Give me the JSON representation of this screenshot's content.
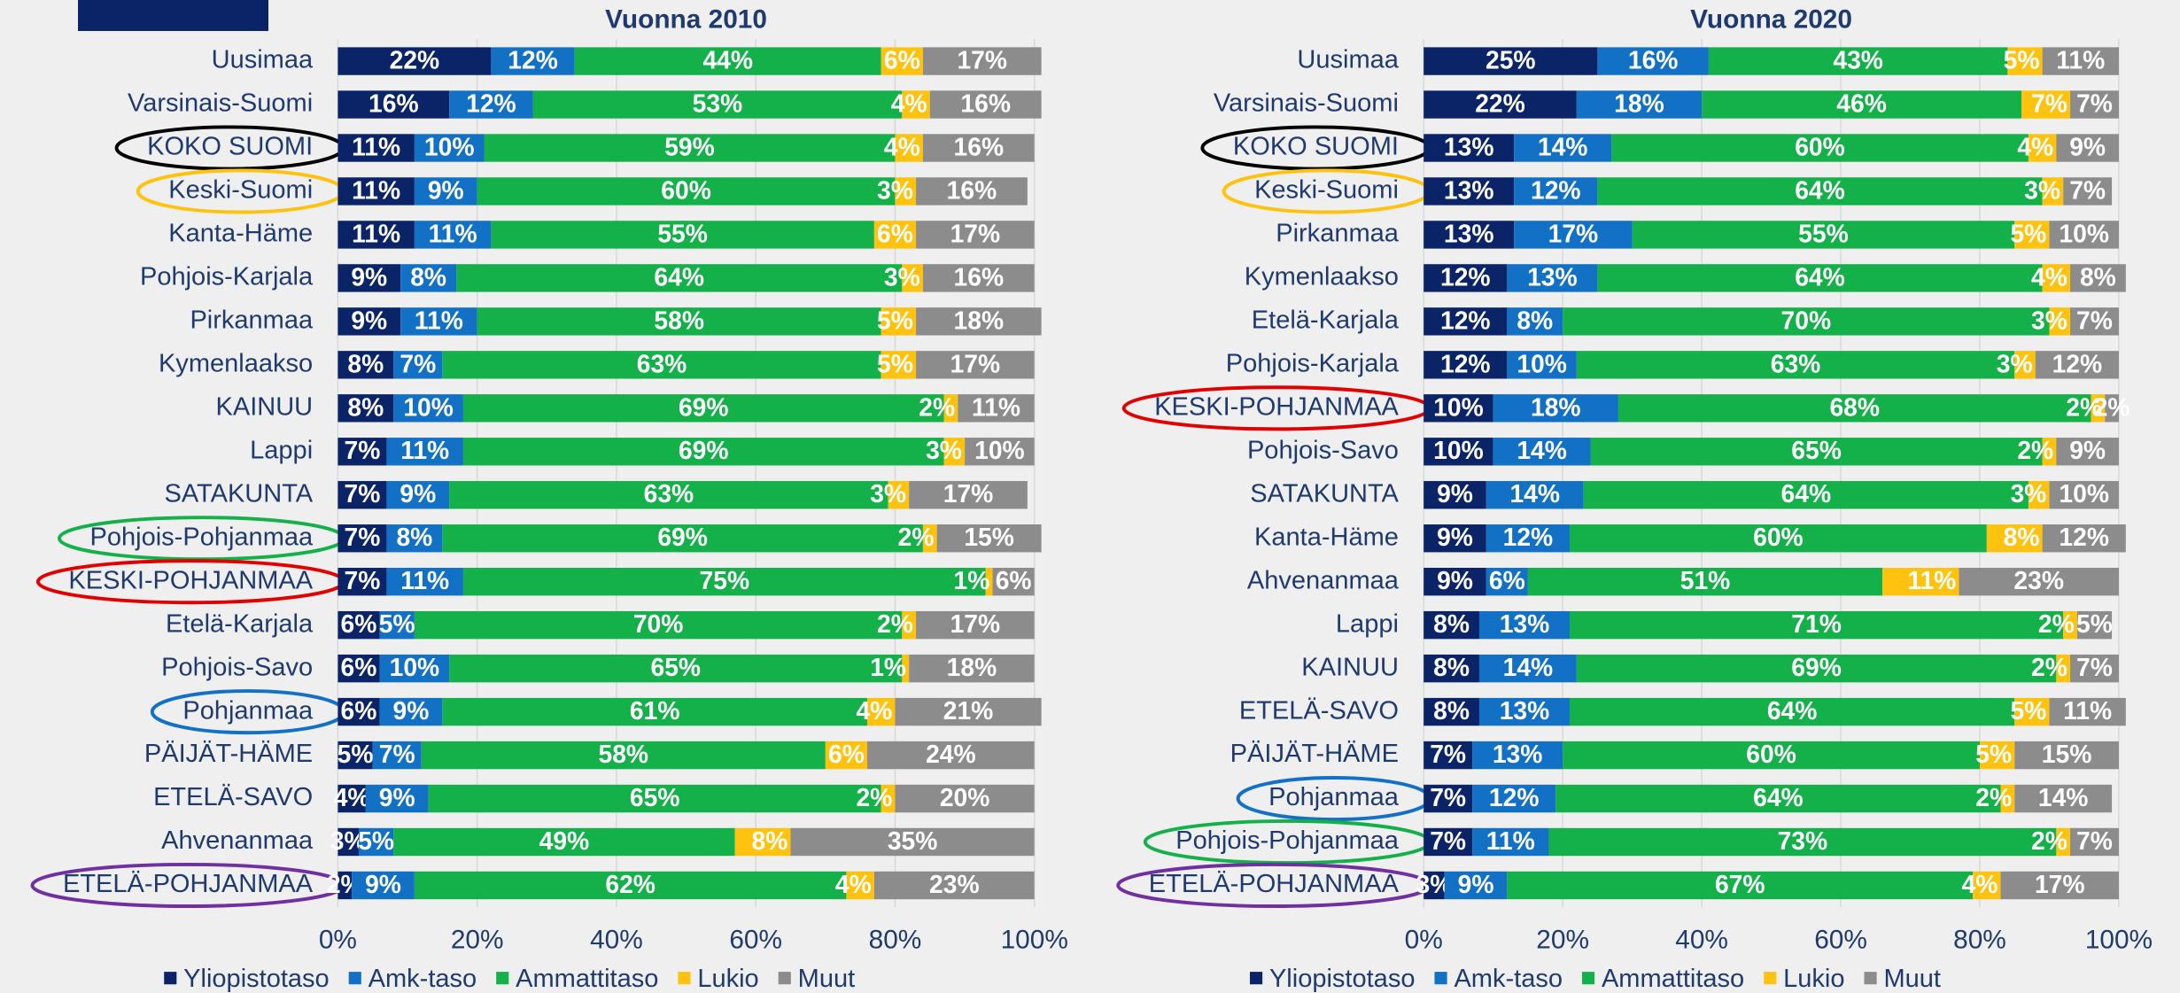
{
  "chart_data": [
    {
      "type": "stacked_bar_horizontal",
      "title": "Vuonna 2010",
      "categories": [
        "Uusimaa",
        "Varsinais-Suomi",
        "KOKO SUOMI",
        "Keski-Suomi",
        "Kanta-Häme",
        "Pohjois-Karjala",
        "Pirkanmaa",
        "Kymenlaakso",
        "KAINUU",
        "Lappi",
        "SATAKUNTA",
        "Pohjois-Pohjanmaa",
        "KESKI-POHJANMAA",
        "Etelä-Karjala",
        "Pohjois-Savo",
        "Pohjanmaa",
        "PÄIJÄT-HÄME",
        "ETELÄ-SAVO",
        "Ahvenanmaa",
        "ETELÄ-POHJANMAA"
      ],
      "series": [
        {
          "name": "Yliopistotaso",
          "color": "#0b2468",
          "values": [
            22,
            16,
            11,
            11,
            11,
            9,
            9,
            8,
            8,
            7,
            7,
            7,
            7,
            6,
            6,
            6,
            5,
            4,
            3,
            2
          ],
          "value_labels": [
            "22%",
            "16%",
            "11%",
            "11%",
            "11%",
            "9%",
            "9%",
            "8%",
            "8%",
            "7%",
            "7%",
            "7%",
            "7%",
            "6%",
            "6%",
            "6%",
            "5%",
            "4%",
            "3%",
            "2%"
          ]
        },
        {
          "name": "Amk-taso",
          "color": "#1271c4",
          "values": [
            12,
            12,
            10,
            9,
            11,
            8,
            11,
            7,
            10,
            11,
            9,
            8,
            11,
            5,
            10,
            9,
            7,
            9,
            5,
            9
          ],
          "value_labels": [
            "12%",
            "12%",
            "10%",
            "9%",
            "11%",
            "8%",
            "11%",
            "7%",
            "10%",
            "11%",
            "9%",
            "8%",
            "11%",
            "5%",
            "10%",
            "9%",
            "7%",
            "9%",
            "5%",
            "9%"
          ]
        },
        {
          "name": "Ammattitaso",
          "color": "#14b04a",
          "values": [
            44,
            53,
            59,
            60,
            55,
            64,
            58,
            63,
            69,
            69,
            63,
            69,
            75,
            70,
            65,
            61,
            58,
            65,
            49,
            62
          ],
          "value_labels": [
            "44%",
            "53%",
            "59%",
            "60%",
            "55%",
            "64%",
            "58%",
            "63%",
            "69%",
            "69%",
            "63%",
            "69%",
            "75%",
            "70%",
            "65%",
            "61%",
            "58%",
            "65%",
            "49%",
            "62%"
          ]
        },
        {
          "name": "Lukio",
          "color": "#ffc20e",
          "values": [
            6,
            4,
            4,
            3,
            6,
            3,
            5,
            5,
            2,
            3,
            3,
            2,
            1,
            2,
            1,
            4,
            6,
            2,
            8,
            4
          ],
          "value_labels": [
            "6%",
            "4%",
            "4%",
            "3%",
            "6%",
            "3%",
            "5%",
            "5%",
            "2%",
            "3%",
            "3%",
            "2%",
            "1%",
            "2%",
            "1%",
            "4%",
            "6%",
            "2%",
            "8%",
            "4%"
          ]
        },
        {
          "name": "Muut",
          "color": "#8c8c8c",
          "values": [
            17,
            16,
            16,
            16,
            17,
            16,
            18,
            17,
            11,
            10,
            17,
            15,
            6,
            17,
            18,
            21,
            24,
            20,
            35,
            23
          ],
          "value_labels": [
            "17%",
            "16%",
            "16%",
            "16%",
            "17%",
            "16%",
            "18%",
            "17%",
            "11%",
            "10%",
            "17%",
            "15%",
            "6%",
            "17%",
            "18%",
            "21%",
            "24%",
            "20%",
            "35%",
            "23%"
          ]
        }
      ],
      "xlim": [
        0,
        100
      ],
      "xticks": [
        {
          "value": 0,
          "label": "0%"
        },
        {
          "value": 20,
          "label": "20%"
        },
        {
          "value": 40,
          "label": "40%"
        },
        {
          "value": 60,
          "label": "60%"
        },
        {
          "value": 80,
          "label": "80%"
        },
        {
          "value": 100,
          "label": "100%"
        }
      ],
      "grid": true,
      "legend": "bottom"
    },
    {
      "type": "stacked_bar_horizontal",
      "title": "Vuonna 2020",
      "categories": [
        "Uusimaa",
        "Varsinais-Suomi",
        "KOKO SUOMI",
        "Keski-Suomi",
        "Pirkanmaa",
        "Kymenlaakso",
        "Etelä-Karjala",
        "Pohjois-Karjala",
        "KESKI-POHJANMAA",
        "Pohjois-Savo",
        "SATAKUNTA",
        "Kanta-Häme",
        "Ahvenanmaa",
        "Lappi",
        "KAINUU",
        "ETELÄ-SAVO",
        "PÄIJÄT-HÄME",
        "Pohjanmaa",
        "Pohjois-Pohjanmaa",
        "ETELÄ-POHJANMAA"
      ],
      "series": [
        {
          "name": "Yliopistotaso",
          "color": "#0b2468",
          "values": [
            25,
            22,
            13,
            13,
            13,
            12,
            12,
            12,
            10,
            10,
            9,
            9,
            9,
            8,
            8,
            8,
            7,
            7,
            7,
            3
          ],
          "value_labels": [
            "25%",
            "22%",
            "13%",
            "13%",
            "13%",
            "12%",
            "12%",
            "12%",
            "10%",
            "10%",
            "9%",
            "9%",
            "9%",
            "8%",
            "8%",
            "8%",
            "7%",
            "7%",
            "7%",
            "3%"
          ]
        },
        {
          "name": "Amk-taso",
          "color": "#1271c4",
          "values": [
            16,
            18,
            14,
            12,
            17,
            13,
            8,
            10,
            18,
            14,
            14,
            12,
            6,
            13,
            14,
            13,
            13,
            12,
            11,
            9
          ],
          "value_labels": [
            "16%",
            "18%",
            "14%",
            "12%",
            "17%",
            "13%",
            "8%",
            "10%",
            "18%",
            "14%",
            "14%",
            "12%",
            "6%",
            "13%",
            "14%",
            "13%",
            "13%",
            "12%",
            "11%",
            "9%"
          ]
        },
        {
          "name": "Ammattitaso",
          "color": "#14b04a",
          "values": [
            43,
            46,
            60,
            64,
            55,
            64,
            70,
            63,
            68,
            65,
            64,
            60,
            51,
            71,
            69,
            64,
            60,
            64,
            73,
            67
          ],
          "value_labels": [
            "43%",
            "46%",
            "60%",
            "64%",
            "55%",
            "64%",
            "70%",
            "63%",
            "68%",
            "65%",
            "64%",
            "60%",
            "51%",
            "71%",
            "69%",
            "64%",
            "60%",
            "64%",
            "73%",
            "67%"
          ]
        },
        {
          "name": "Lukio",
          "color": "#ffc20e",
          "values": [
            5,
            7,
            4,
            3,
            5,
            4,
            3,
            3,
            2,
            2,
            3,
            8,
            11,
            2,
            2,
            5,
            5,
            2,
            2,
            4
          ],
          "value_labels": [
            "5%",
            "7%",
            "4%",
            "3%",
            "5%",
            "4%",
            "3%",
            "3%",
            "2%",
            "2%",
            "3%",
            "8%",
            "11%",
            "2%",
            "2%",
            "5%",
            "5%",
            "2%",
            "2%",
            "4%"
          ]
        },
        {
          "name": "Muut",
          "color": "#8c8c8c",
          "values": [
            11,
            7,
            9,
            7,
            10,
            8,
            7,
            12,
            2,
            9,
            10,
            12,
            23,
            5,
            7,
            11,
            15,
            14,
            7,
            17
          ],
          "value_labels": [
            "11%",
            "7%",
            "9%",
            "7%",
            "10%",
            "8%",
            "7%",
            "12%",
            "2%",
            "9%",
            "10%",
            "12%",
            "23%",
            "5%",
            "7%",
            "11%",
            "15%",
            "14%",
            "7%",
            "17%"
          ]
        }
      ],
      "xlim": [
        0,
        100
      ],
      "xticks": [
        {
          "value": 0,
          "label": "0%"
        },
        {
          "value": 20,
          "label": "20%"
        },
        {
          "value": 40,
          "label": "40%"
        },
        {
          "value": 60,
          "label": "60%"
        },
        {
          "value": 80,
          "label": "80%"
        },
        {
          "value": 100,
          "label": "100%"
        }
      ],
      "grid": true,
      "legend": "bottom"
    }
  ]
}
